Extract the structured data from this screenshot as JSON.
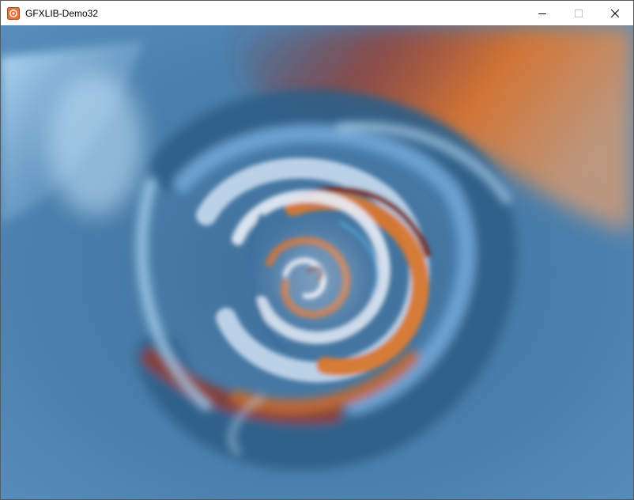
{
  "window": {
    "title": "GFXLIB-Demo32",
    "app_icon": "gfxlib-app-icon",
    "buttons": {
      "minimize_icon": "minimize-icon",
      "maximize_icon": "maximize-icon",
      "close_icon": "close-icon"
    }
  },
  "canvas": {
    "content": "swirl-vortex-render",
    "colors": {
      "blue": "#4a7fa8",
      "light_blue": "#a9d2f0",
      "orange": "#d9772e",
      "dark_red": "#6e2c2a",
      "white_core": "#e8eef8"
    }
  }
}
